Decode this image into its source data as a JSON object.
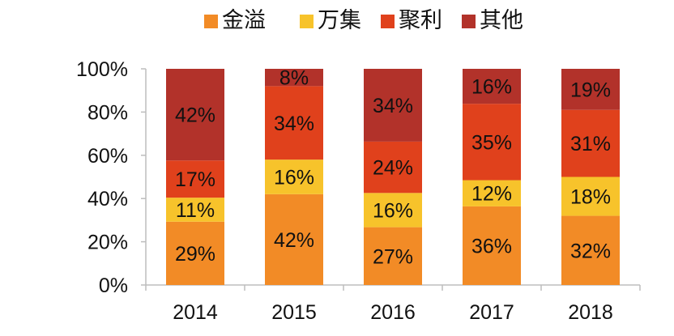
{
  "colors": {
    "金溢": "#F28B26",
    "万集": "#F7C32B",
    "聚利": "#E0411C",
    "其他": "#B2322A",
    "axis": "#bdbdbd",
    "text": "#111111"
  },
  "chart_data": {
    "type": "bar",
    "stacked": true,
    "title": "",
    "xlabel": "",
    "ylabel": "",
    "categories": [
      "2014",
      "2015",
      "2016",
      "2017",
      "2018"
    ],
    "series": [
      {
        "name": "金溢",
        "values": [
          29,
          42,
          27,
          36,
          32
        ],
        "labels": [
          "29%",
          "42%",
          "27%",
          "36%",
          "32%"
        ]
      },
      {
        "name": "万集",
        "values": [
          11,
          16,
          16,
          12,
          18
        ],
        "labels": [
          "11%",
          "16%",
          "16%",
          "12%",
          "18%"
        ]
      },
      {
        "name": "聚利",
        "values": [
          17,
          34,
          24,
          35,
          31
        ],
        "labels": [
          "17%",
          "34%",
          "24%",
          "35%",
          "31%"
        ]
      },
      {
        "name": "其他",
        "values": [
          42,
          8,
          34,
          16,
          19
        ],
        "labels": [
          "42%",
          "8%",
          "34%",
          "16%",
          "19%"
        ]
      }
    ],
    "ylim": [
      0,
      100
    ],
    "yticks": [
      0,
      20,
      40,
      60,
      80,
      100
    ],
    "ytick_labels": [
      "0%",
      "20%",
      "40%",
      "60%",
      "80%",
      "100%"
    ],
    "grid": false,
    "legend": {
      "position": "top-center",
      "entries": [
        "金溢",
        "万集",
        "聚利",
        "其他"
      ]
    }
  }
}
